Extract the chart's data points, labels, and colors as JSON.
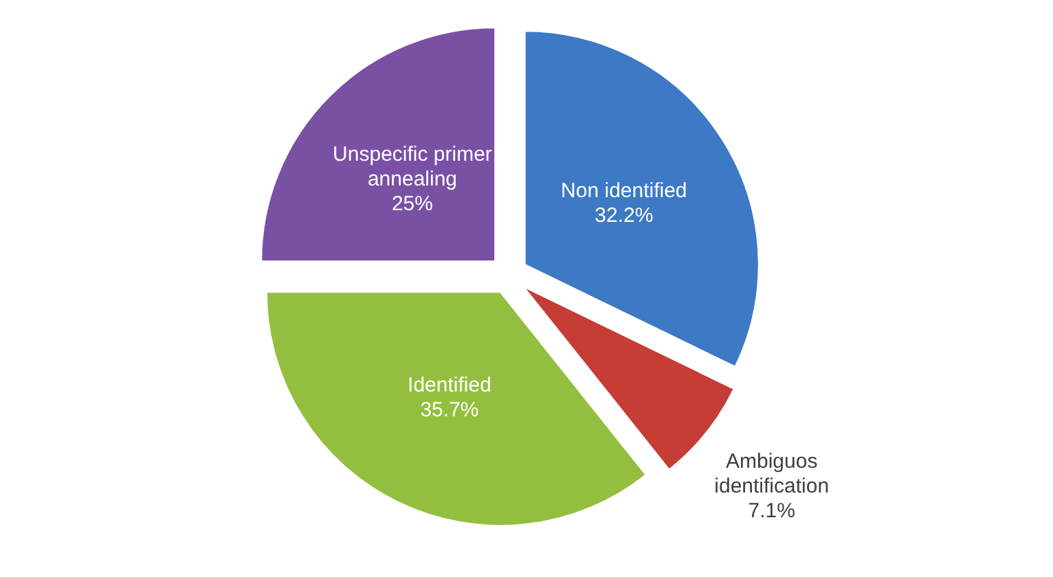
{
  "chart_data": {
    "type": "pie",
    "categories": [
      "Non identified",
      "Ambiguos identification",
      "Identified",
      "Unspecific primer annealing"
    ],
    "values": [
      32.2,
      7.1,
      35.7,
      25
    ],
    "colors": [
      "#3d79c4",
      "#c53d35",
      "#94bf3e",
      "#7a50a5"
    ],
    "value_labels": [
      "32.2%",
      "7.1%",
      "35.7%",
      "25%"
    ]
  }
}
